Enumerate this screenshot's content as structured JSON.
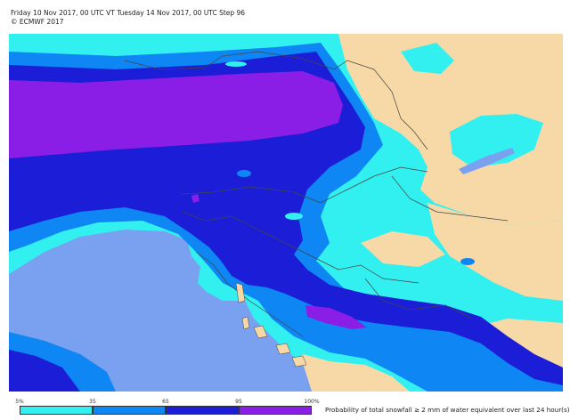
{
  "header": {
    "line1": "Friday 10 Nov 2017, 00 UTC VT Tuesday 14 Nov 2017, 00 UTC Step 96",
    "line2": "© ECMWF 2017"
  },
  "map": {
    "colors": {
      "land": "#f7d9a8",
      "sea": "#7aa0f0",
      "c5": "#33f0f0",
      "c35": "#0e86f3",
      "c65": "#1b1ed6",
      "c95": "#8a1ee6",
      "border": "#444444"
    }
  },
  "legend": {
    "ticks": [
      "5%",
      "35",
      "65",
      "95",
      "100%"
    ],
    "caption": "Probability of total snowfall ≥ 2 mm of water equivalent over last 24 hour(s)",
    "colors": [
      "#33f0f0",
      "#0e86f3",
      "#1b1ed6",
      "#8a1ee6"
    ]
  }
}
